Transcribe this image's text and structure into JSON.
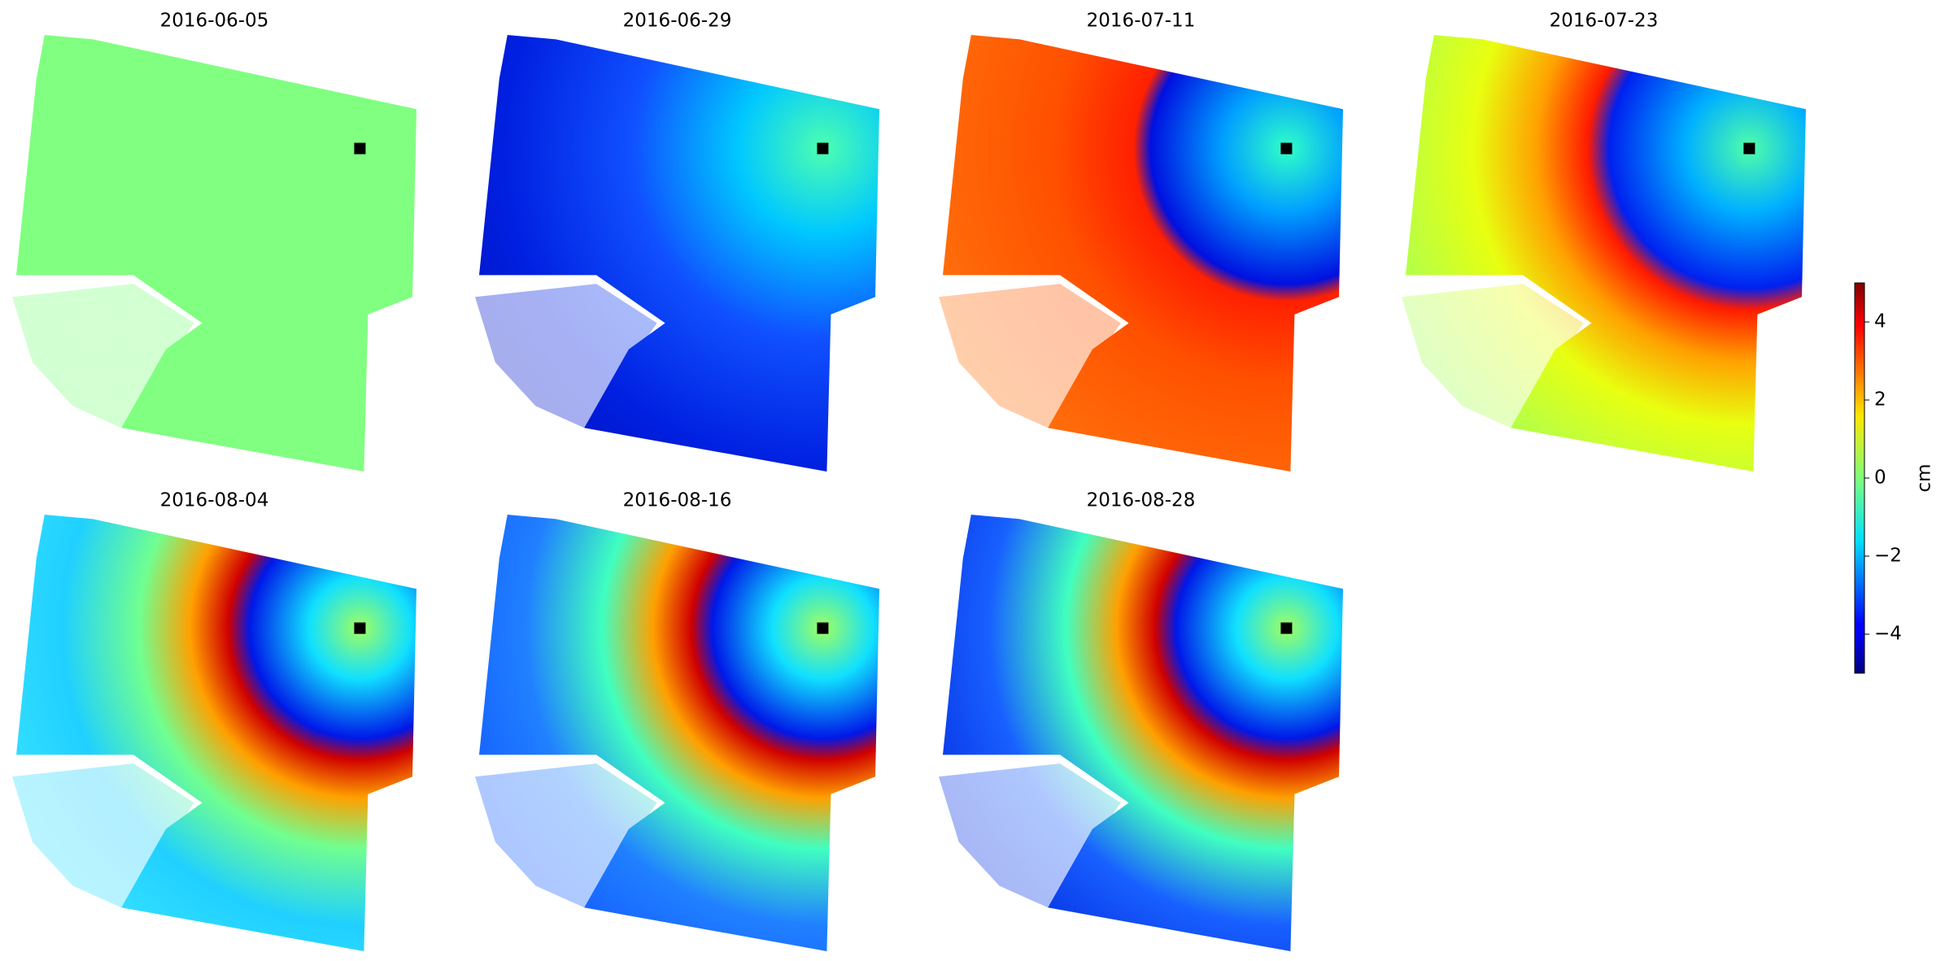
{
  "chart_data": {
    "type": "image-grid",
    "panels": [
      {
        "title": "2016-06-05"
      },
      {
        "title": "2016-06-29"
      },
      {
        "title": "2016-07-11"
      },
      {
        "title": "2016-07-23"
      },
      {
        "title": "2016-08-04"
      },
      {
        "title": "2016-08-16"
      },
      {
        "title": "2016-08-28"
      }
    ],
    "colorbar": {
      "label": "cm",
      "colormap": "jet",
      "lim": [
        -5,
        5
      ],
      "ticks": [
        {
          "value": -4,
          "label": "−4"
        },
        {
          "value": -2,
          "label": "−2"
        },
        0,
        2,
        4
      ]
    }
  }
}
